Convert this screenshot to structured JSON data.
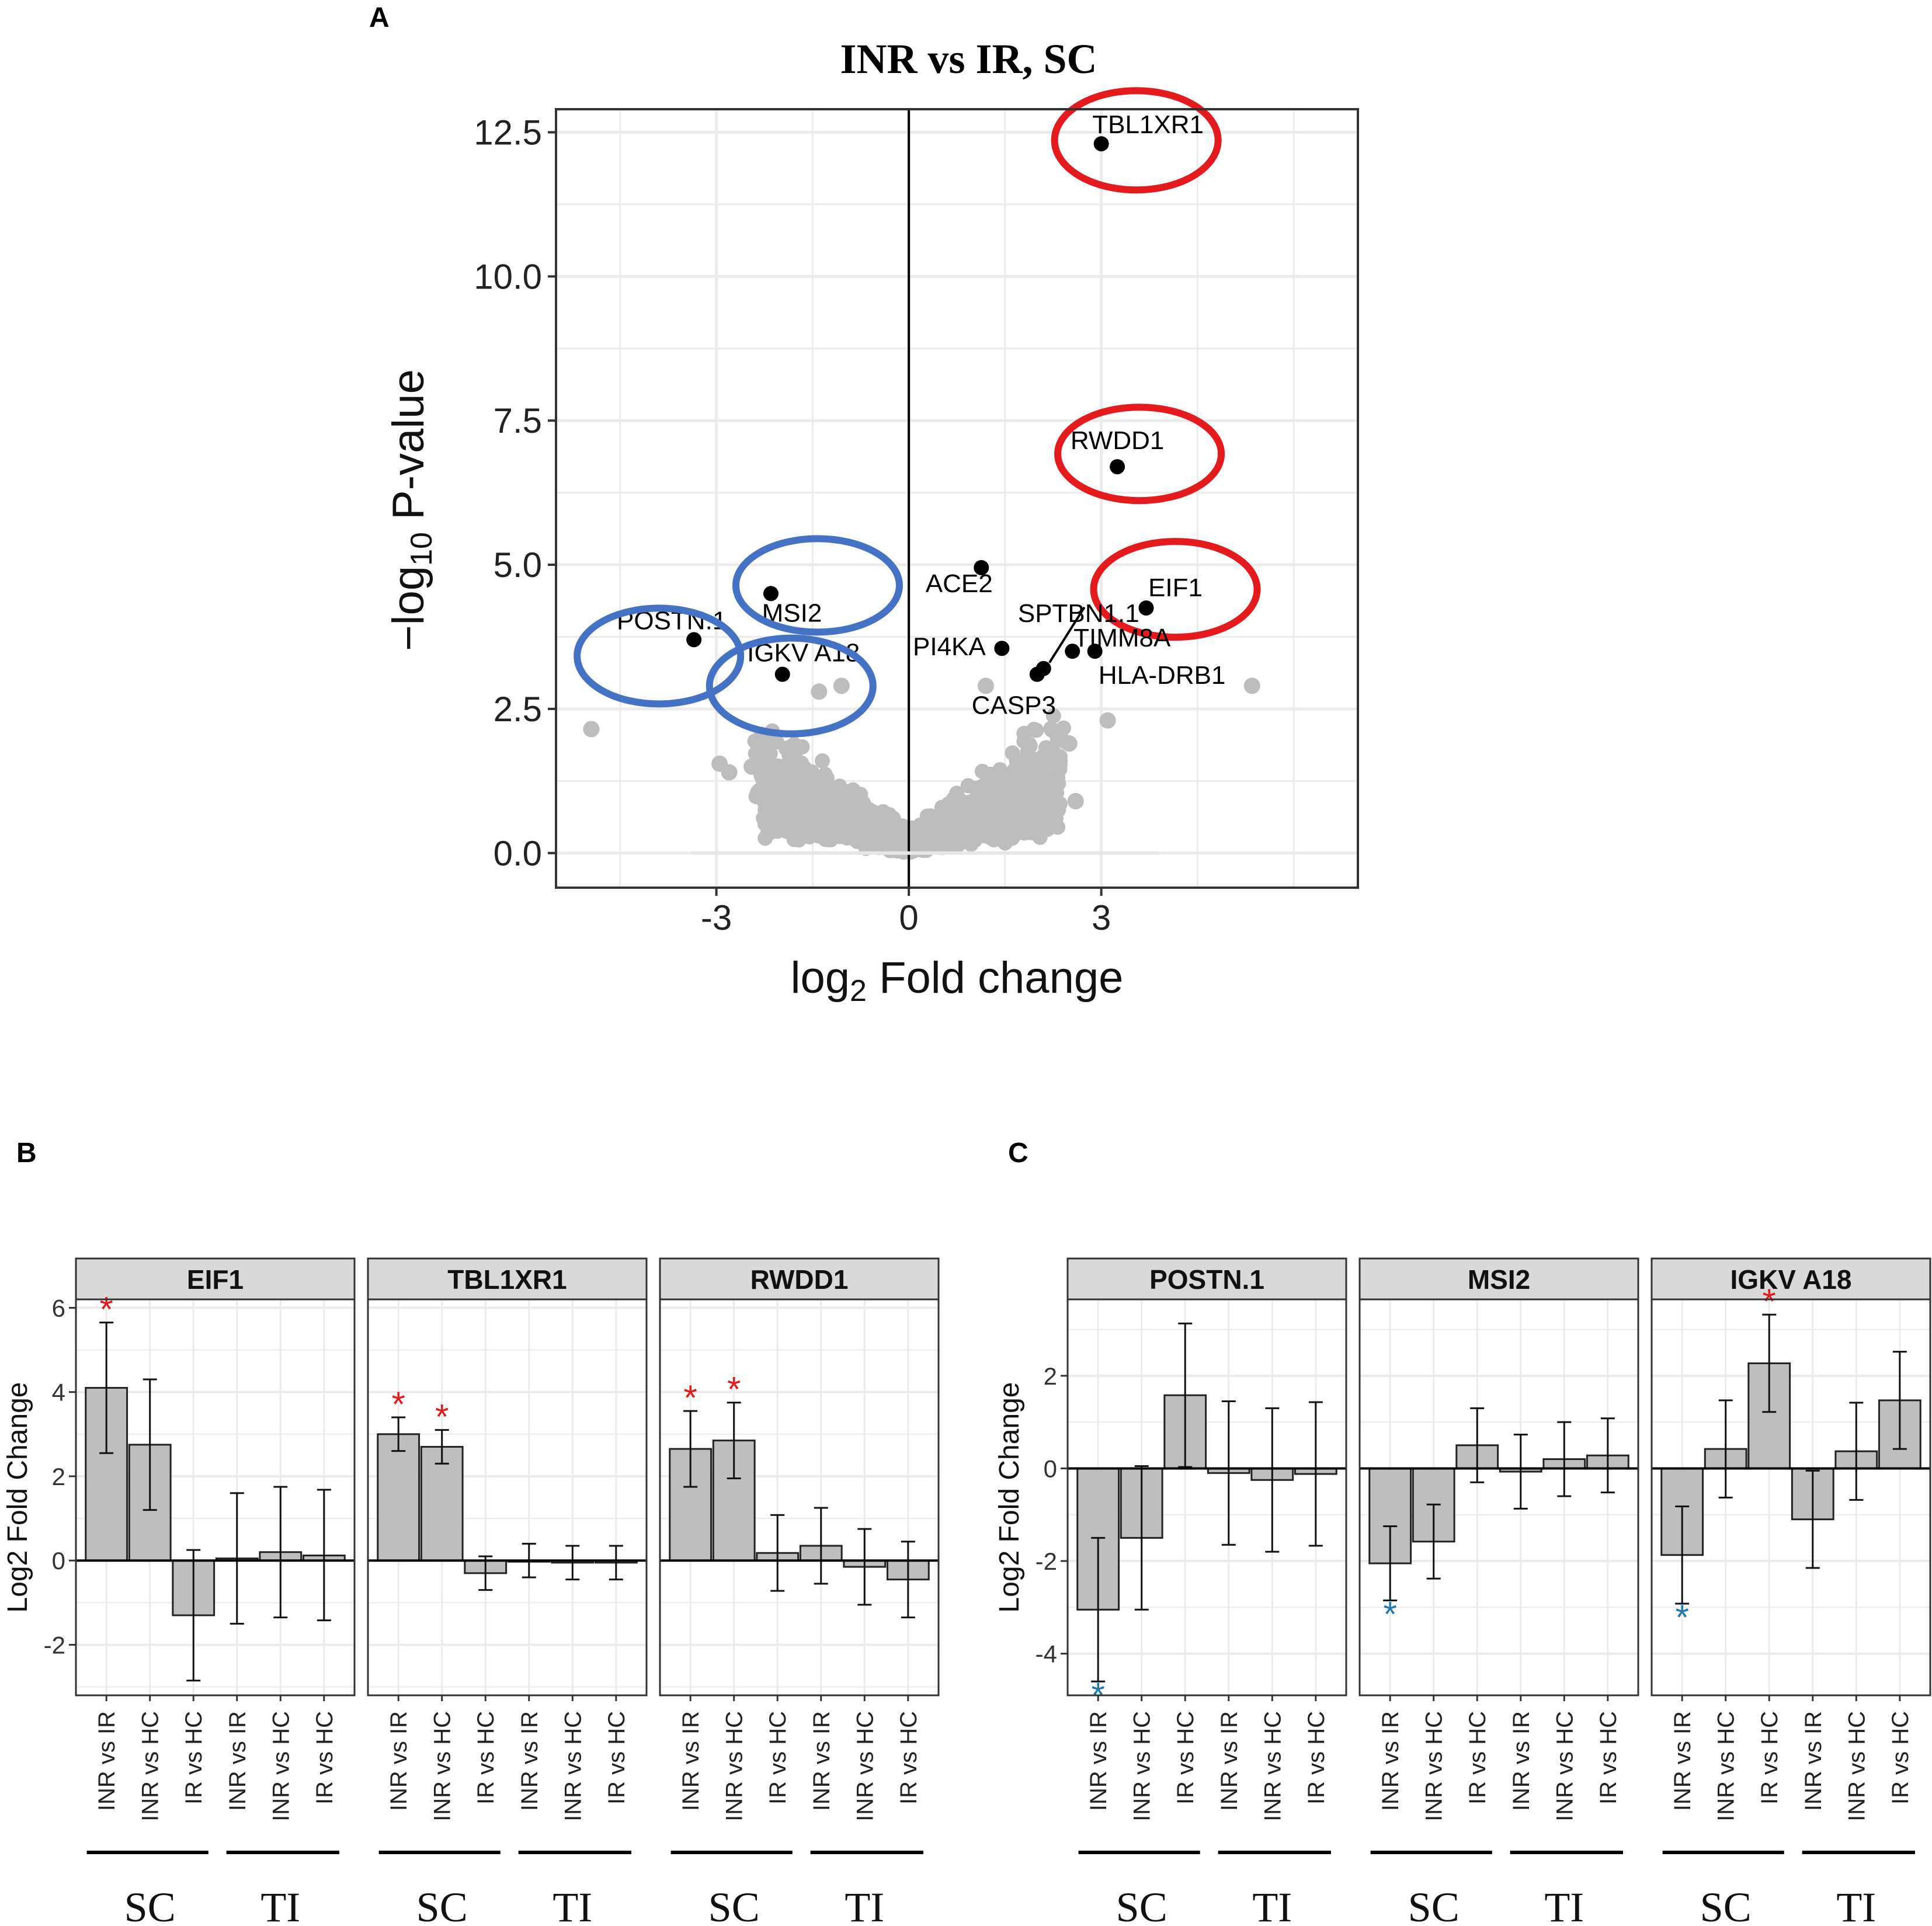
{
  "panel_labels": {
    "a": "A",
    "b": "B",
    "c": "C"
  },
  "colors": {
    "grey_point": "#bdbdbd",
    "black_point": "#000000",
    "red_circle": "#e41a1c",
    "blue_circle": "#4472c4",
    "bar_fill": "#bebebe",
    "strip_fill": "#d9d9d9",
    "grid": "#ebebeb",
    "sig_red": "#e31a1c",
    "sig_blue": "#1f78b4"
  },
  "group_labels": {
    "sc": "SC",
    "ti": "TI"
  },
  "chart_data": [
    {
      "id": "volcano",
      "type": "scatter",
      "title": "INR vs IR, SC",
      "xlabel_main": "log",
      "xlabel_sub": "2",
      "xlabel_rest": " Fold change",
      "ylabel_main": "−log",
      "ylabel_sub": "10",
      "ylabel_rest": " P-value",
      "xlim": [
        -5.5,
        7.0
      ],
      "ylim": [
        -0.6,
        12.9
      ],
      "x_ticks": [
        -3,
        0,
        3
      ],
      "x_tick_labels": [
        "-3",
        "0",
        "3"
      ],
      "y_ticks": [
        0,
        2.5,
        5,
        7.5,
        10,
        12.5
      ],
      "y_tick_labels": [
        "0.0",
        "2.5",
        "5.0",
        "7.5",
        "10.0",
        "12.5"
      ],
      "labeled_points": [
        {
          "label": "TBL1XR1",
          "x": 3.0,
          "y": 12.3,
          "highlight": "red"
        },
        {
          "label": "RWDD1",
          "x": 3.25,
          "y": 6.7,
          "highlight": "red"
        },
        {
          "label": "EIF1",
          "x": 3.7,
          "y": 4.25,
          "highlight": "red"
        },
        {
          "label": "ACE2",
          "x": 1.13,
          "y": 4.95,
          "highlight": "none"
        },
        {
          "label": "TIMM8A",
          "x": 2.55,
          "y": 3.5,
          "highlight": "none"
        },
        {
          "label": "SPTBN1.1",
          "x": 2.1,
          "y": 3.2,
          "highlight": "none"
        },
        {
          "label": "PI4KA",
          "x": 1.45,
          "y": 3.55,
          "highlight": "none"
        },
        {
          "label": "HLA-DRB1",
          "x": 2.9,
          "y": 3.5,
          "highlight": "none"
        },
        {
          "label": "CASP3",
          "x": 2.0,
          "y": 3.1,
          "highlight": "none"
        },
        {
          "label": "MSI2",
          "x": -2.15,
          "y": 4.5,
          "highlight": "blue"
        },
        {
          "label": "POSTN.1",
          "x": -3.35,
          "y": 3.7,
          "highlight": "blue"
        },
        {
          "label": "IGKV A18",
          "x": -1.97,
          "y": 3.1,
          "highlight": "blue"
        }
      ],
      "outlier_points": [
        [
          -4.95,
          2.15
        ],
        [
          5.35,
          2.9
        ],
        [
          -2.95,
          1.55
        ],
        [
          -2.8,
          1.4
        ],
        [
          -2.45,
          1.5
        ],
        [
          2.5,
          1.9
        ],
        [
          3.1,
          2.3
        ],
        [
          -1.95,
          0.75
        ],
        [
          2.6,
          0.9
        ],
        [
          -1.05,
          2.9
        ],
        [
          1.2,
          2.9
        ],
        [
          -1.4,
          2.8
        ],
        [
          2.35,
          1.6
        ]
      ]
    },
    {
      "id": "panel-b",
      "type": "bar",
      "ylabel": "Log2 Fold Change",
      "ylim": [
        -3.2,
        6.2
      ],
      "y_ticks": [
        -2,
        0,
        2,
        4,
        6
      ],
      "y_tick_labels": [
        "-2",
        "0",
        "2",
        "4",
        "6"
      ],
      "categories": [
        "INR vs IR",
        "INR vs HC",
        "IR vs HC",
        "INR vs IR",
        "INR vs HC",
        "IR vs HC"
      ],
      "facets": [
        {
          "name": "EIF1",
          "values": [
            4.1,
            2.75,
            -1.3,
            0.05,
            0.2,
            0.12
          ],
          "err_low": [
            2.55,
            1.2,
            -2.85,
            -1.5,
            -1.35,
            -1.42
          ],
          "err_high": [
            5.65,
            4.3,
            0.25,
            1.6,
            1.75,
            1.68
          ],
          "sig": [
            "red",
            "",
            "",
            "",
            "",
            ""
          ]
        },
        {
          "name": "TBL1XR1",
          "values": [
            3.0,
            2.7,
            -0.3,
            0.0,
            -0.05,
            -0.05
          ],
          "err_low": [
            2.6,
            2.3,
            -0.7,
            -0.4,
            -0.45,
            -0.45
          ],
          "err_high": [
            3.4,
            3.1,
            0.1,
            0.4,
            0.35,
            0.35
          ],
          "sig": [
            "red",
            "red",
            "",
            "",
            "",
            ""
          ]
        },
        {
          "name": "RWDD1",
          "values": [
            2.65,
            2.85,
            0.18,
            0.35,
            -0.15,
            -0.45
          ],
          "err_low": [
            1.75,
            1.95,
            -0.72,
            -0.55,
            -1.05,
            -1.35
          ],
          "err_high": [
            3.55,
            3.75,
            1.08,
            1.25,
            0.75,
            0.45
          ],
          "sig": [
            "red",
            "red",
            "",
            "",
            "",
            ""
          ]
        }
      ]
    },
    {
      "id": "panel-c",
      "type": "bar",
      "ylabel": "Log2 Fold Change",
      "ylim": [
        -4.9,
        3.65
      ],
      "y_ticks": [
        -4,
        -2,
        0,
        2
      ],
      "y_tick_labels": [
        "-4",
        "-2",
        "0",
        "2"
      ],
      "categories": [
        "INR vs IR",
        "INR vs HC",
        "IR vs HC",
        "INR vs IR",
        "INR vs HC",
        "IR vs HC"
      ],
      "facets": [
        {
          "name": "POSTN.1",
          "values": [
            -3.05,
            -1.5,
            1.58,
            -0.1,
            -0.25,
            -0.12
          ],
          "err_low": [
            -4.6,
            -3.05,
            0.03,
            -1.65,
            -1.8,
            -1.67
          ],
          "err_high": [
            -1.5,
            0.05,
            3.13,
            1.45,
            1.3,
            1.43
          ],
          "sig": [
            "blue",
            "",
            "",
            "",
            "",
            ""
          ]
        },
        {
          "name": "MSI2",
          "values": [
            -2.05,
            -1.58,
            0.5,
            -0.07,
            0.2,
            0.28
          ],
          "err_low": [
            -2.85,
            -2.38,
            -0.3,
            -0.87,
            -0.6,
            -0.52
          ],
          "err_high": [
            -1.25,
            -0.78,
            1.3,
            0.73,
            1.0,
            1.08
          ],
          "sig": [
            "blue",
            "",
            "",
            "",
            "",
            ""
          ]
        },
        {
          "name": "IGKV A18",
          "values": [
            -1.87,
            0.42,
            2.27,
            -1.1,
            0.37,
            1.47
          ],
          "err_low": [
            -2.92,
            -0.63,
            1.22,
            -2.15,
            -0.68,
            0.42
          ],
          "err_high": [
            -0.82,
            1.47,
            3.32,
            -0.05,
            1.42,
            2.52
          ],
          "sig": [
            "blue",
            "",
            "red",
            "",
            "",
            ""
          ]
        }
      ]
    }
  ]
}
